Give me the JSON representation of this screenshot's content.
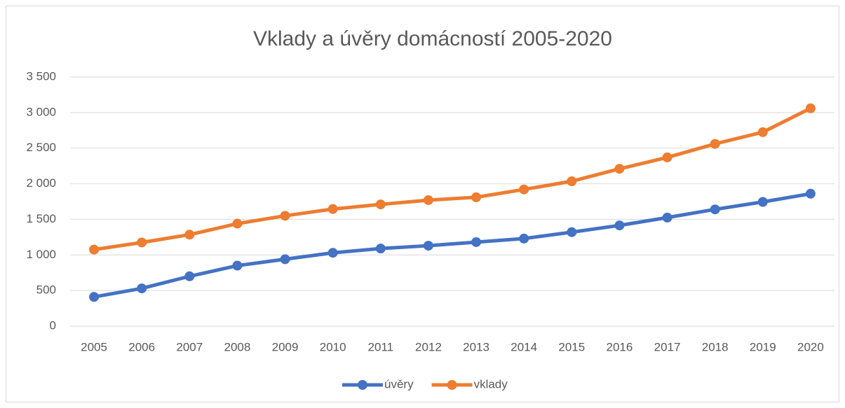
{
  "chart_data": {
    "type": "line",
    "title": "Vklady a úvěry domácností 2005-2020",
    "categories": [
      "2005",
      "2006",
      "2007",
      "2008",
      "2009",
      "2010",
      "2011",
      "2012",
      "2013",
      "2014",
      "2015",
      "2016",
      "2017",
      "2018",
      "2019",
      "2020"
    ],
    "series": [
      {
        "name": "úvěry",
        "color": "#4472c4",
        "values": [
          410,
          530,
          700,
          850,
          940,
          1030,
          1090,
          1130,
          1180,
          1230,
          1320,
          1415,
          1525,
          1640,
          1745,
          1860
        ]
      },
      {
        "name": "vklady",
        "color": "#ed7d31",
        "values": [
          1075,
          1175,
          1285,
          1440,
          1550,
          1645,
          1710,
          1770,
          1810,
          1920,
          2035,
          2210,
          2370,
          2560,
          2725,
          3060
        ]
      }
    ],
    "ylim": [
      0,
      3500
    ],
    "yticks": [
      0,
      500,
      {
        "value": 1000,
        "label": "1 000"
      },
      {
        "value": 1500,
        "label": "1 500"
      },
      {
        "value": 2000,
        "label": "2 000"
      },
      {
        "value": 2500,
        "label": "2 500"
      },
      {
        "value": 3000,
        "label": "3 000"
      },
      {
        "value": 3500,
        "label": "3 500"
      }
    ],
    "grid": true,
    "legend": "bottom"
  }
}
